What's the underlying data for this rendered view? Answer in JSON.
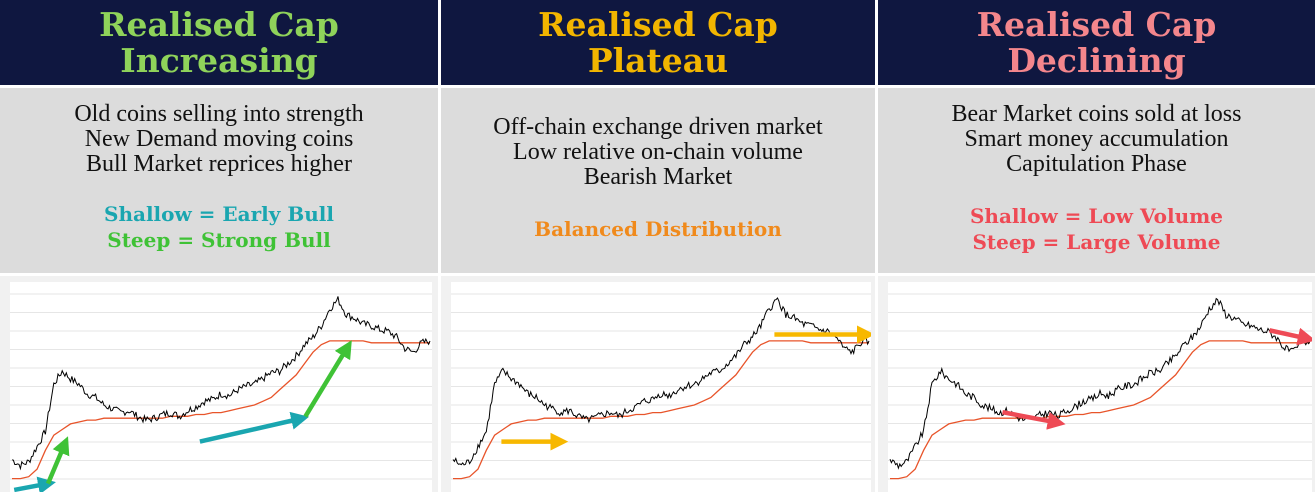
{
  "panels": [
    {
      "title_line1": "Realised Cap",
      "title_line2": "Increasing",
      "title_color": "#8fd35a",
      "lines": [
        "Old coins selling into strength",
        "New Demand moving coins",
        "Bull Market reprices higher"
      ],
      "highlights": [
        {
          "text": "Shallow = Early Bull",
          "color": "#1aa6b0"
        },
        {
          "text": "Steep = Strong Bull",
          "color": "#3fc236"
        }
      ],
      "arrow_colors": [
        "#1aa6b0",
        "#3fc236"
      ]
    },
    {
      "title_line1": "Realised Cap",
      "title_line2": "Plateau",
      "title_color": "#f2b500",
      "lines": [
        "Off-chain exchange driven market",
        "Low relative on-chain volume",
        "Bearish Market"
      ],
      "highlights": [
        {
          "text": "Balanced Distribution",
          "color": "#f08a1c"
        }
      ],
      "arrow_colors": [
        "#f7b800"
      ]
    },
    {
      "title_line1": "Realised Cap",
      "title_line2": "Declining",
      "title_color": "#f4868c",
      "lines": [
        "Bear Market coins sold at loss",
        "Smart money accumulation",
        "Capitulation Phase"
      ],
      "highlights": [
        {
          "text": "Shallow = Low Volume",
          "color": "#ee4a55"
        },
        {
          "text": "Steep = Large Volume",
          "color": "#ee4a55"
        }
      ],
      "arrow_colors": [
        "#ee4a55"
      ]
    }
  ],
  "chart_data": {
    "type": "line",
    "series_colors": {
      "price": "#000000",
      "realised": "#e8542a"
    },
    "x": [
      0,
      1,
      2,
      3,
      4,
      5,
      6,
      7,
      8,
      9,
      10,
      11,
      12,
      13,
      14,
      15,
      16,
      17,
      18,
      19,
      20,
      21,
      22,
      23,
      24,
      25,
      26,
      27,
      28,
      29,
      30,
      31,
      32,
      33,
      34,
      35,
      36,
      37,
      38,
      39,
      40,
      41,
      42,
      43,
      44,
      45,
      46,
      47,
      48,
      49,
      50
    ],
    "price": [
      0.15,
      0.12,
      0.14,
      0.22,
      0.3,
      0.55,
      0.62,
      0.58,
      0.55,
      0.5,
      0.48,
      0.44,
      0.42,
      0.4,
      0.41,
      0.38,
      0.36,
      0.37,
      0.39,
      0.4,
      0.38,
      0.41,
      0.43,
      0.46,
      0.47,
      0.5,
      0.49,
      0.52,
      0.54,
      0.55,
      0.58,
      0.61,
      0.62,
      0.66,
      0.7,
      0.76,
      0.8,
      0.86,
      0.95,
      1.0,
      0.92,
      0.9,
      0.87,
      0.86,
      0.84,
      0.83,
      0.8,
      0.74,
      0.72,
      0.77,
      0.78
    ],
    "realised": [
      0.05,
      0.05,
      0.06,
      0.1,
      0.2,
      0.28,
      0.31,
      0.34,
      0.35,
      0.36,
      0.36,
      0.37,
      0.37,
      0.37,
      0.37,
      0.37,
      0.37,
      0.37,
      0.37,
      0.38,
      0.38,
      0.38,
      0.39,
      0.39,
      0.4,
      0.4,
      0.41,
      0.42,
      0.43,
      0.44,
      0.46,
      0.48,
      0.52,
      0.56,
      0.6,
      0.66,
      0.72,
      0.76,
      0.78,
      0.78,
      0.78,
      0.78,
      0.78,
      0.77,
      0.77,
      0.77,
      0.77,
      0.77,
      0.77,
      0.77,
      0.77
    ],
    "ylim": [
      0,
      1.05
    ],
    "grid": true
  }
}
